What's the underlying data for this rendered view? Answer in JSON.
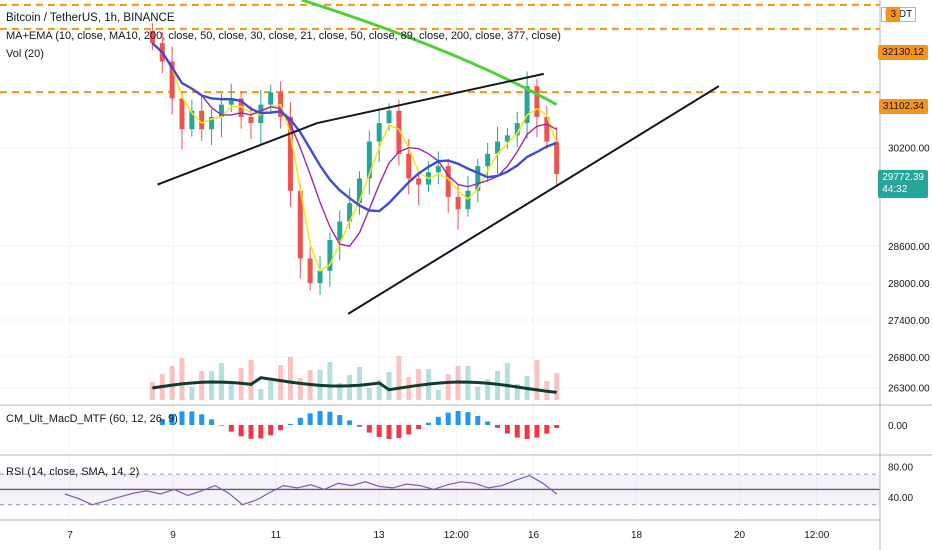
{
  "header": {
    "title": "Bitcoin / TetherUS, 1h, BINANCE",
    "indicator": "MA+EMA (10, close, MA10, 200, close, 50, close, 30, close, 21, close, 50, close, 89, close, 200, close, 377, close)",
    "volume": "Vol (20)",
    "currency": "USDT"
  },
  "panes": {
    "macd_label": "CM_Ult_MacD_MTF (60, 12, 26, 9)",
    "macd_tick": "0.00",
    "rsi_label": "RSI (14, close, SMA, 14, 2)",
    "rsi_ticks": [
      "80.00",
      "40.00"
    ]
  },
  "price_tags": {
    "top_level": "3",
    "level_32130": "32130.12",
    "level_31102": "31102.34",
    "last_price": "29772.39",
    "countdown": "44:32"
  },
  "colors": {
    "up": "#26a69a",
    "down": "#ef5350",
    "ema_fast": "#f5e61b",
    "ema_mid": "#9c27b0",
    "ema_slow": "#3f4bd6",
    "ema_200": "#4cd137",
    "level_line": "#f7931a",
    "rsi": "#7e57c2",
    "volume_ma": "#103d2b"
  },
  "chart_data": [
    {
      "type": "candlestick",
      "title": "Bitcoin / TetherUS, 1h, BINANCE",
      "y_ticks": [
        30200,
        28600,
        28000,
        27400,
        26800,
        26300
      ],
      "y_range": [
        26100,
        32600
      ],
      "x_ticks": [
        "7",
        "9",
        "11",
        "13",
        "12:00",
        "16",
        "18",
        "20",
        "12:00"
      ],
      "horizontal_levels": [
        32520,
        32130.12,
        31102.34
      ],
      "last_price": 29772.39,
      "close_series": [
        31900,
        31600,
        31000,
        30500,
        30800,
        30500,
        30700,
        30900,
        31000,
        30700,
        30600,
        30900,
        31100,
        30700,
        29500,
        28400,
        28000,
        28200,
        28700,
        29000,
        29300,
        29700,
        30300,
        30600,
        30800,
        30100,
        29700,
        29600,
        29800,
        29900,
        29400,
        29200,
        29500,
        29900,
        30100,
        30300,
        30400,
        30600,
        31200,
        30700,
        30300,
        29772.39
      ],
      "trendlines": [
        {
          "from": [
            8.7,
            29600
          ],
          "to": [
            11.8,
            30600
          ]
        },
        {
          "from": [
            11.8,
            30600
          ],
          "to": [
            16.2,
            31400
          ]
        },
        {
          "from": [
            12.4,
            27500
          ],
          "to": [
            19.6,
            31200
          ]
        }
      ]
    },
    {
      "type": "line",
      "title": "RSI (14, close, SMA, 14, 2)",
      "y_ticks": [
        80,
        40
      ],
      "values": [
        44,
        38,
        30,
        35,
        40,
        45,
        48,
        44,
        50,
        42,
        48,
        55,
        45,
        30,
        36,
        46,
        55,
        52,
        56,
        50,
        58,
        55,
        60,
        54,
        52,
        57,
        55,
        50,
        56,
        60,
        58,
        52,
        55,
        62,
        68,
        58,
        44
      ]
    }
  ]
}
